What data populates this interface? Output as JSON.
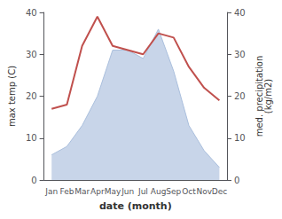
{
  "chart_data": {
    "type": "line",
    "xlabel": "date (month)",
    "ylabel": "max temp (C)",
    "y2label": "med. precipitation\n(kg/m2)",
    "categories": [
      "Jan",
      "Feb",
      "Mar",
      "Apr",
      "May",
      "Jun",
      "Jul",
      "Aug",
      "Sep",
      "Oct",
      "Nov",
      "Dec"
    ],
    "series": [
      {
        "type": "area",
        "axis": "y2",
        "color": "#aabfdd",
        "values": [
          6,
          8,
          13,
          20,
          31,
          31,
          29,
          36,
          26,
          13,
          7,
          3
        ]
      },
      {
        "type": "line",
        "axis": "y",
        "color": "#c0504d",
        "values": [
          17,
          18,
          32,
          39,
          32,
          31,
          30,
          35,
          34,
          27,
          22,
          19
        ]
      }
    ],
    "ylim": [
      0,
      40
    ],
    "yticks": [
      0,
      10,
      20,
      30,
      40
    ],
    "y2lim": [
      0,
      40
    ],
    "y2ticks": [
      0,
      10,
      20,
      30,
      40
    ],
    "grid": false
  }
}
